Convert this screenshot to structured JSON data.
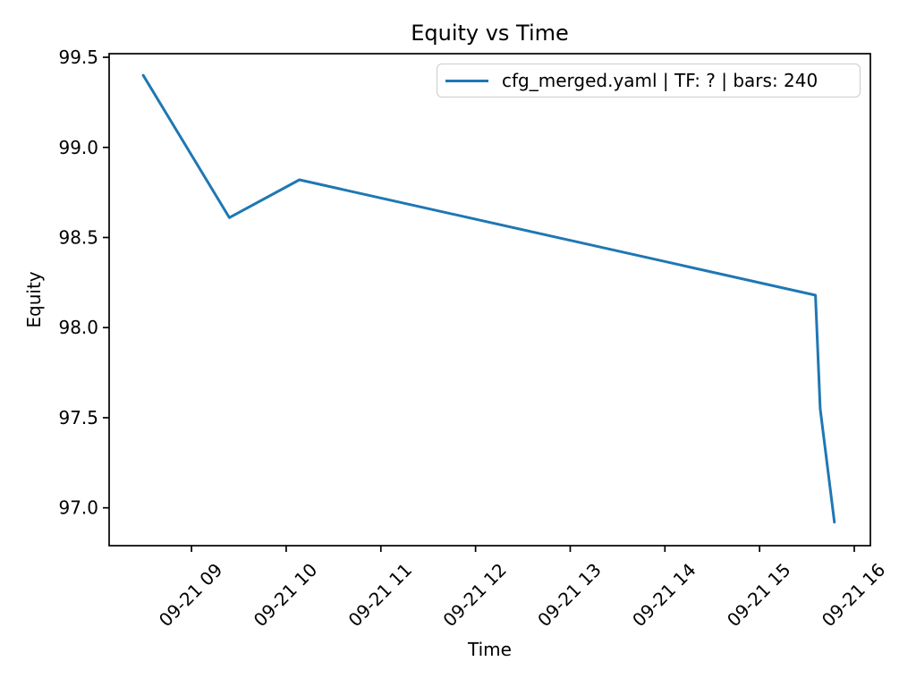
{
  "chart_data": {
    "type": "line",
    "title": "Equity vs Time",
    "xlabel": "Time",
    "ylabel": "Equity",
    "grid": false,
    "line_color": "#1f77b4",
    "axis_color": "#000000",
    "legend": {
      "label": "cfg_merged.yaml | TF: ? | bars: 240",
      "position": "upper right"
    },
    "x_ticks": [
      {
        "hours": 9,
        "label": "09-21 09"
      },
      {
        "hours": 10,
        "label": "09-21 10"
      },
      {
        "hours": 11,
        "label": "09-21 11"
      },
      {
        "hours": 12,
        "label": "09-21 12"
      },
      {
        "hours": 13,
        "label": "09-21 13"
      },
      {
        "hours": 14,
        "label": "09-21 14"
      },
      {
        "hours": 15,
        "label": "09-21 15"
      },
      {
        "hours": 16,
        "label": "09-21 16"
      }
    ],
    "y_ticks": [
      {
        "value": 97.0,
        "label": "97.0"
      },
      {
        "value": 97.5,
        "label": "97.5"
      },
      {
        "value": 98.0,
        "label": "98.0"
      },
      {
        "value": 98.5,
        "label": "98.5"
      },
      {
        "value": 99.0,
        "label": "99.0"
      },
      {
        "value": 99.5,
        "label": "99.5"
      }
    ],
    "xlim_hours": [
      8.13,
      16.17
    ],
    "ylim": [
      96.79,
      99.52
    ],
    "series": [
      {
        "name": "cfg_merged.yaml | TF: ? | bars: 240",
        "points": [
          {
            "time": "09-21 08:29",
            "hours": 8.49,
            "equity": 99.4
          },
          {
            "time": "09-21 09:24",
            "hours": 9.4,
            "equity": 98.61
          },
          {
            "time": "09-21 10:08",
            "hours": 10.14,
            "equity": 98.82
          },
          {
            "time": "09-21 15:35",
            "hours": 15.59,
            "equity": 98.18
          },
          {
            "time": "09-21 15:38",
            "hours": 15.64,
            "equity": 97.55
          },
          {
            "time": "09-21 15:47",
            "hours": 15.79,
            "equity": 96.92
          }
        ]
      }
    ]
  }
}
